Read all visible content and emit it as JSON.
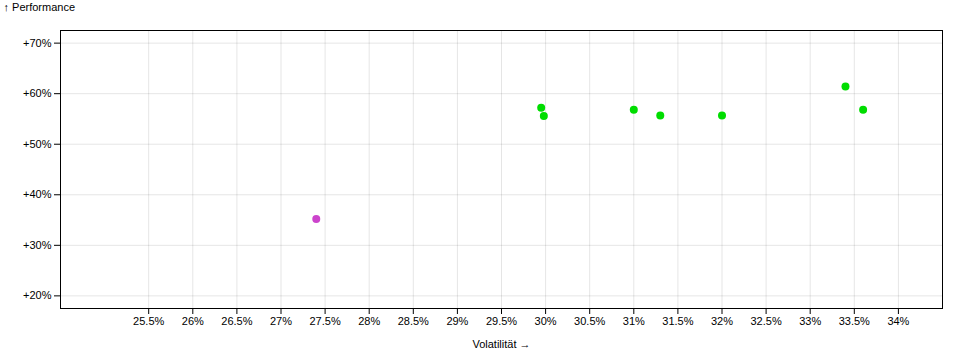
{
  "chart_data": {
    "type": "scatter",
    "xlabel": "Volatilität",
    "ylabel": "Performance",
    "xlim": [
      0.245,
      0.345
    ],
    "ylim": [
      0.175,
      0.725
    ],
    "xticks": [
      {
        "value": 0.255,
        "label": "25.5%"
      },
      {
        "value": 0.26,
        "label": "26%"
      },
      {
        "value": 0.265,
        "label": "26.5%"
      },
      {
        "value": 0.27,
        "label": "27%"
      },
      {
        "value": 0.275,
        "label": "27.5%"
      },
      {
        "value": 0.28,
        "label": "28%"
      },
      {
        "value": 0.285,
        "label": "28.5%"
      },
      {
        "value": 0.29,
        "label": "29%"
      },
      {
        "value": 0.295,
        "label": "29.5%"
      },
      {
        "value": 0.3,
        "label": "30%"
      },
      {
        "value": 0.305,
        "label": "30.5%"
      },
      {
        "value": 0.31,
        "label": "31%"
      },
      {
        "value": 0.315,
        "label": "31.5%"
      },
      {
        "value": 0.32,
        "label": "32%"
      },
      {
        "value": 0.325,
        "label": "32.5%"
      },
      {
        "value": 0.33,
        "label": "33%"
      },
      {
        "value": 0.335,
        "label": "33.5%"
      },
      {
        "value": 0.34,
        "label": "34%"
      }
    ],
    "yticks": [
      {
        "value": 0.2,
        "label": "+20%"
      },
      {
        "value": 0.3,
        "label": "+30%"
      },
      {
        "value": 0.4,
        "label": "+40%"
      },
      {
        "value": 0.5,
        "label": "+50%"
      },
      {
        "value": 0.6,
        "label": "+60%"
      },
      {
        "value": 0.7,
        "label": "+70%"
      }
    ],
    "grid": true,
    "series": [
      {
        "color": "#00dd00",
        "x": [
          0.2995,
          0.2998,
          0.31,
          0.313,
          0.32,
          0.334,
          0.336
        ],
        "values": [
          0.572,
          0.556,
          0.568,
          0.557,
          0.557,
          0.614,
          0.568
        ]
      },
      {
        "color": "#cc44cc",
        "x": [
          0.274
        ],
        "values": [
          0.352
        ]
      }
    ]
  }
}
